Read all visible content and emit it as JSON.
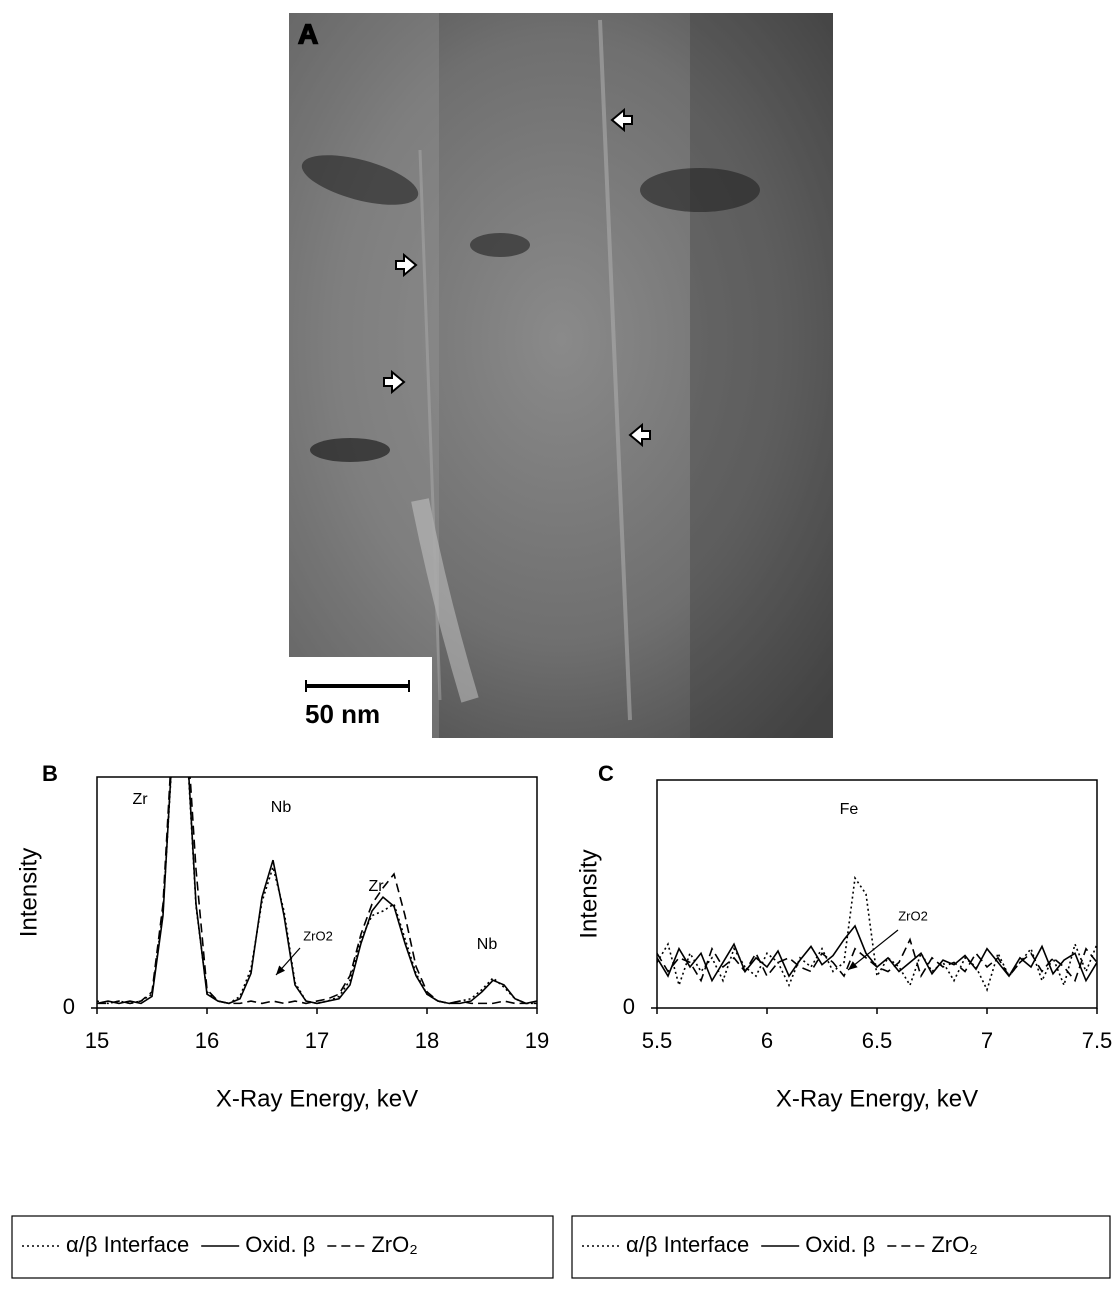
{
  "panel_a": {
    "label": "A",
    "scale_bar": "50 nm"
  },
  "chart_data": [
    {
      "type": "line",
      "label": "B",
      "ylabel": "Intensity",
      "xlabel": "X-Ray Energy, keV",
      "x": [
        15.0,
        15.1,
        15.2,
        15.3,
        15.4,
        15.5,
        15.6,
        15.7,
        15.8,
        15.9,
        16.0,
        16.1,
        16.2,
        16.3,
        16.4,
        16.5,
        16.6,
        16.7,
        16.8,
        16.9,
        17.0,
        17.1,
        17.2,
        17.3,
        17.4,
        17.5,
        17.6,
        17.7,
        17.8,
        17.9,
        18.0,
        18.1,
        18.2,
        18.3,
        18.4,
        18.5,
        18.6,
        18.7,
        18.8,
        18.9,
        19.0
      ],
      "series": [
        {
          "name": "α/β Interface",
          "style": "dotted",
          "color": "#000000",
          "values": [
            3,
            2,
            3,
            2,
            3,
            6,
            42,
            122,
            128,
            44,
            7,
            3,
            2,
            5,
            17,
            46,
            61,
            42,
            11,
            3,
            2,
            3,
            5,
            12,
            30,
            40,
            42,
            45,
            30,
            15,
            6,
            3,
            2,
            3,
            4,
            8,
            13,
            9,
            4,
            2,
            2
          ]
        },
        {
          "name": "Oxid. β",
          "style": "solid",
          "color": "#000000",
          "values": [
            2,
            3,
            2,
            3,
            2,
            5,
            40,
            125,
            130,
            45,
            6,
            3,
            2,
            4,
            15,
            48,
            64,
            40,
            10,
            3,
            2,
            3,
            4,
            10,
            28,
            42,
            48,
            44,
            28,
            14,
            6,
            3,
            2,
            2,
            3,
            7,
            12,
            10,
            4,
            2,
            3
          ]
        },
        {
          "name": "ZrO₂",
          "style": "dashed",
          "color": "#000000",
          "values": [
            2,
            2,
            3,
            2,
            3,
            7,
            45,
            130,
            135,
            60,
            8,
            3,
            2,
            2,
            3,
            2,
            3,
            2,
            3,
            2,
            3,
            4,
            6,
            14,
            32,
            45,
            52,
            58,
            40,
            18,
            7,
            3,
            2,
            3,
            2,
            2,
            2,
            3,
            2,
            2,
            2
          ]
        }
      ],
      "annotations": [
        "Zr",
        "Nb",
        "Zr",
        "Nb",
        "ZrO2"
      ],
      "xlim": [
        15,
        19
      ],
      "xticks": [
        15,
        16,
        17,
        18,
        19
      ],
      "ylim": [
        0,
        100
      ],
      "yticks": [
        0
      ]
    },
    {
      "type": "line",
      "label": "C",
      "ylabel": "Intensity",
      "xlabel": "X-Ray Energy, keV",
      "x": [
        5.5,
        5.55,
        5.6,
        5.65,
        5.7,
        5.75,
        5.8,
        5.85,
        5.9,
        5.95,
        6.0,
        6.05,
        6.1,
        6.15,
        6.2,
        6.25,
        6.3,
        6.35,
        6.4,
        6.45,
        6.5,
        6.55,
        6.6,
        6.65,
        6.7,
        6.75,
        6.8,
        6.85,
        6.9,
        6.95,
        7.0,
        7.05,
        7.1,
        7.15,
        7.2,
        7.25,
        7.3,
        7.35,
        7.4,
        7.45,
        7.5
      ],
      "series": [
        {
          "name": "α/β Interface",
          "style": "dotted",
          "color": "#000000",
          "values": [
            20,
            28,
            10,
            24,
            16,
            22,
            12,
            26,
            18,
            14,
            24,
            20,
            10,
            22,
            18,
            26,
            16,
            20,
            57,
            50,
            14,
            22,
            18,
            10,
            24,
            16,
            20,
            12,
            22,
            18,
            8,
            24,
            14,
            20,
            26,
            12,
            22,
            10,
            28,
            16,
            28
          ]
        },
        {
          "name": "Oxid. β",
          "style": "solid",
          "color": "#000000",
          "values": [
            22,
            14,
            26,
            18,
            24,
            12,
            20,
            28,
            16,
            22,
            18,
            25,
            14,
            21,
            27,
            19,
            23,
            30,
            36,
            24,
            18,
            22,
            16,
            20,
            24,
            15,
            21,
            19,
            23,
            17,
            26,
            20,
            14,
            22,
            18,
            27,
            15,
            21,
            24,
            12,
            20
          ]
        },
        {
          "name": "ZrO₂",
          "style": "dashed",
          "color": "#000000",
          "values": [
            24,
            16,
            22,
            20,
            12,
            26,
            18,
            22,
            16,
            24,
            14,
            20,
            22,
            18,
            16,
            24,
            20,
            14,
            26,
            22,
            18,
            16,
            20,
            30,
            14,
            22,
            18,
            20,
            16,
            24,
            18,
            22,
            14,
            20,
            24,
            16,
            22,
            18,
            12,
            26,
            20
          ]
        }
      ],
      "annotations": [
        "Fe",
        "ZrO2"
      ],
      "xlim": [
        5.5,
        7.5
      ],
      "xticks": [
        5.5,
        6,
        6.5,
        7,
        7.5
      ],
      "ylim": [
        0,
        100
      ],
      "yticks": [
        0
      ]
    }
  ]
}
